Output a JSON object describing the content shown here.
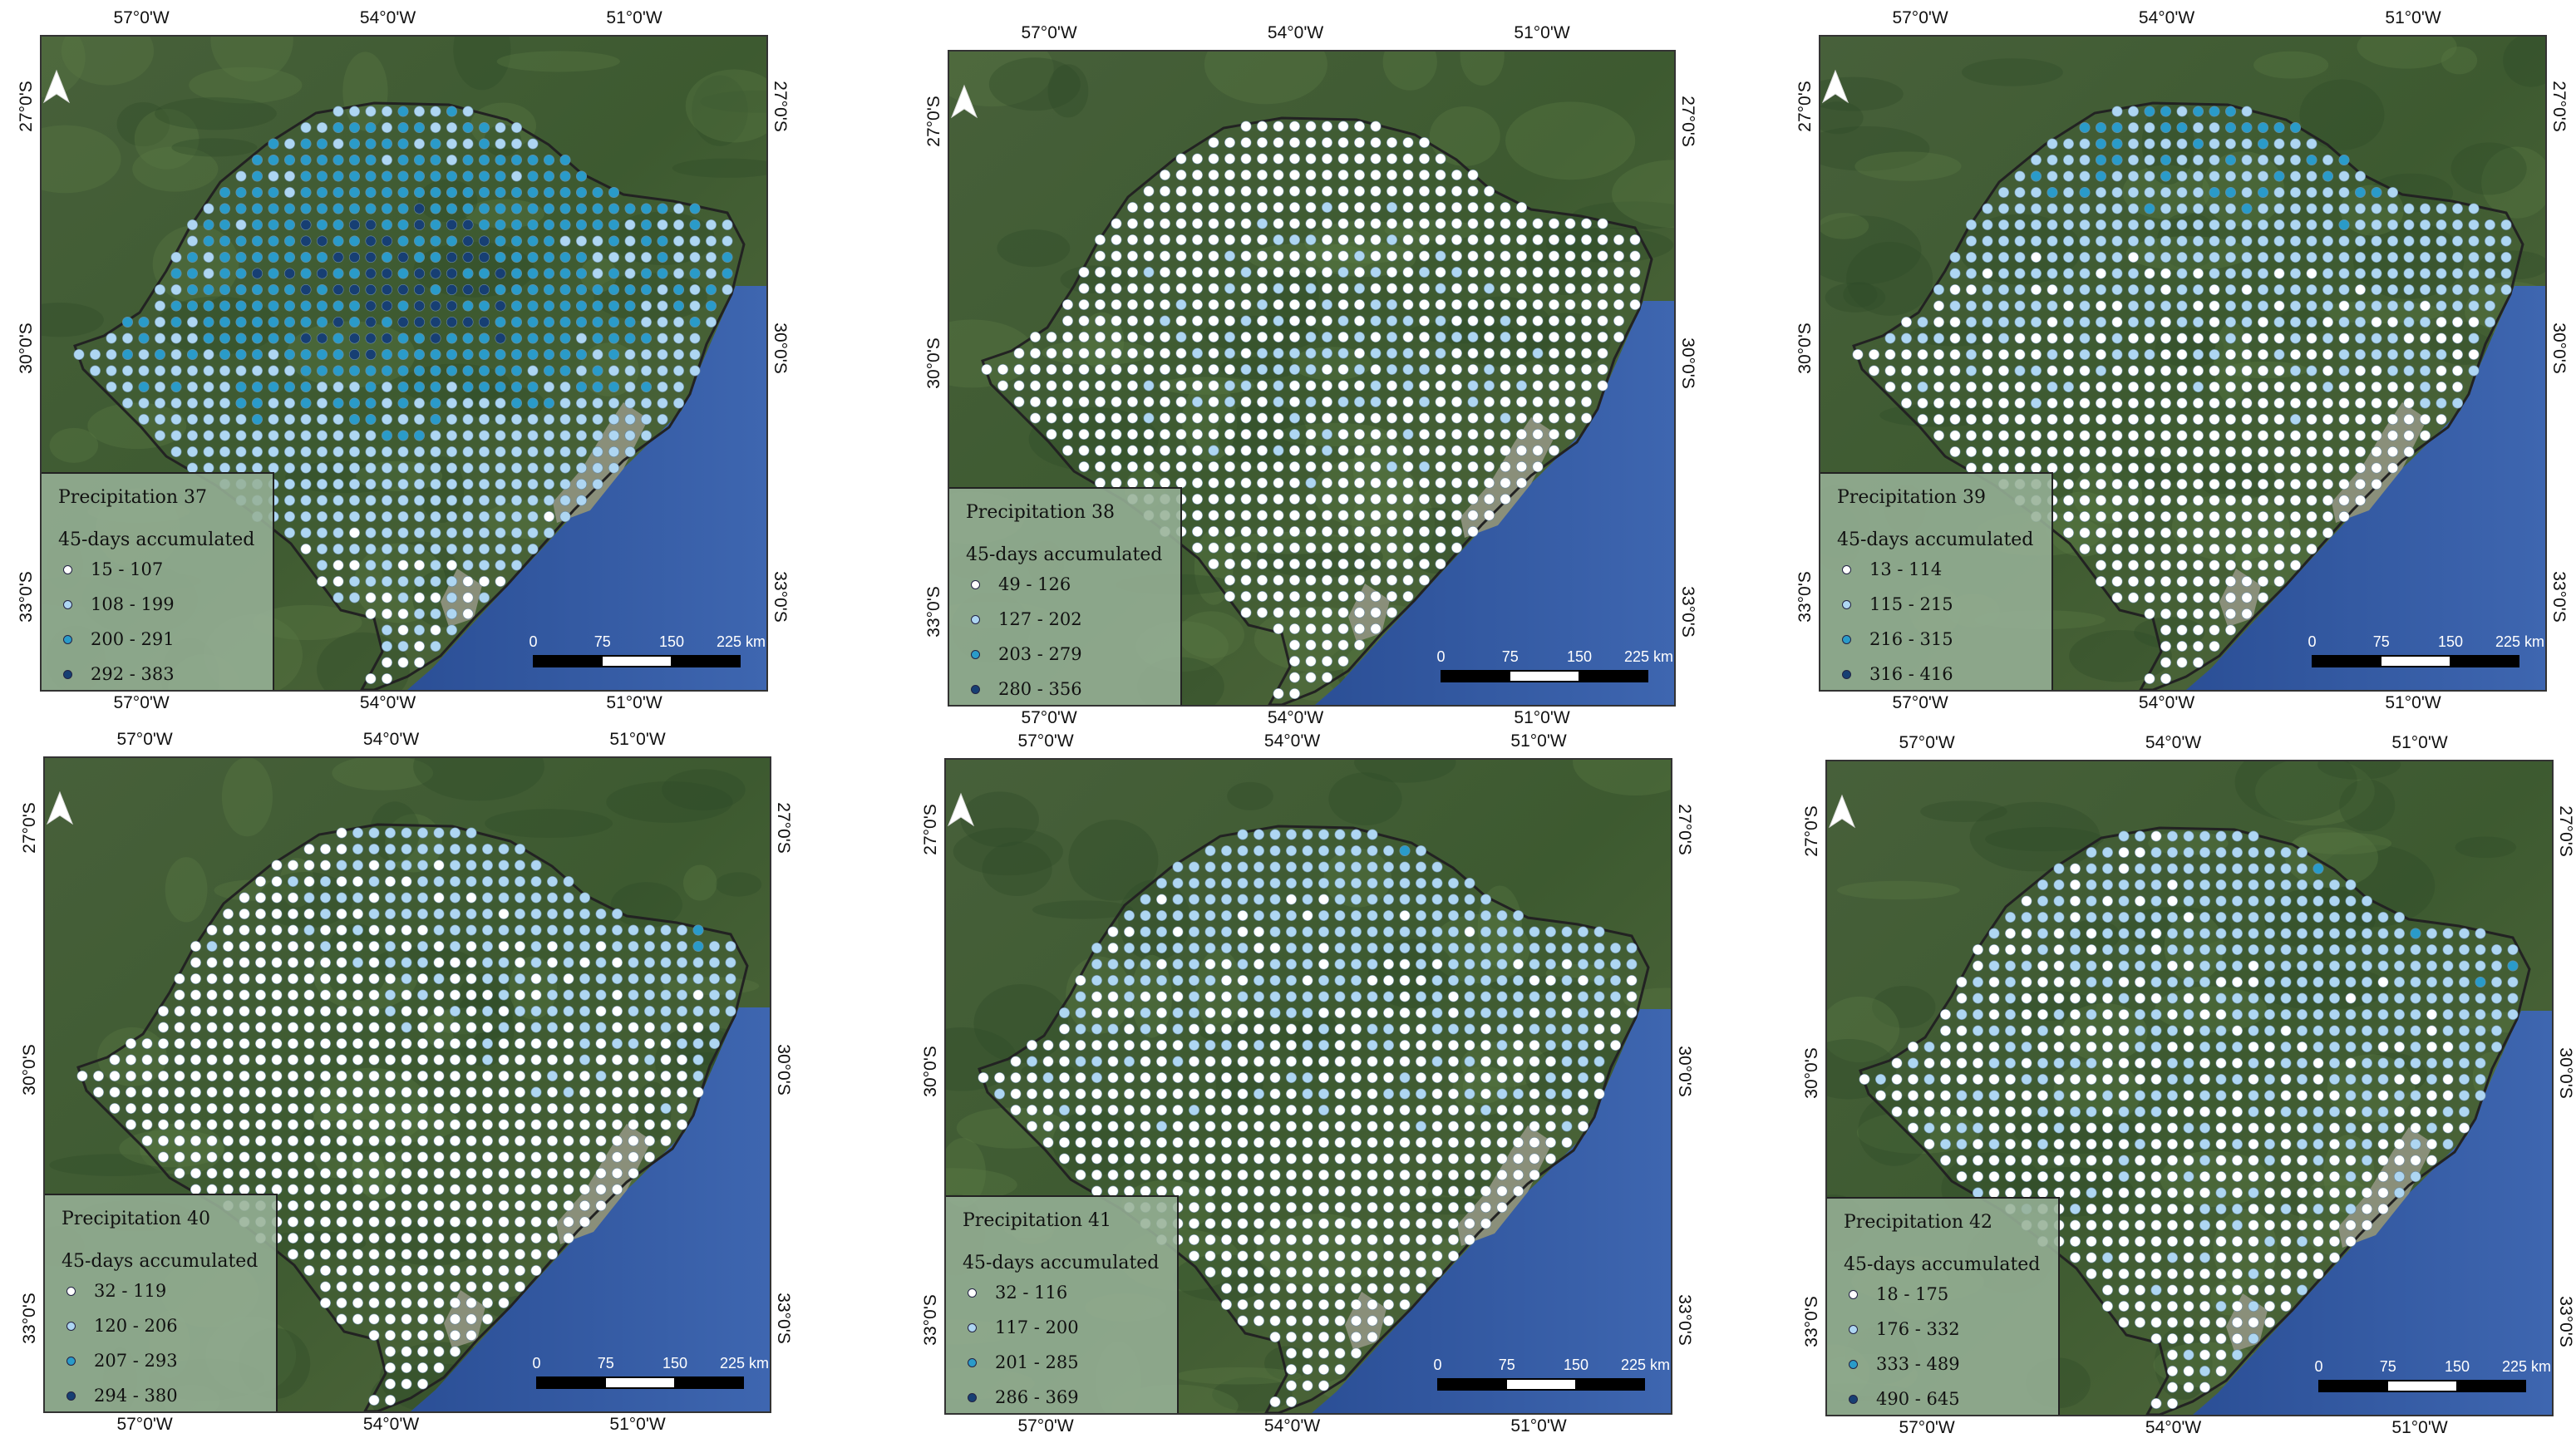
{
  "colors": [
    "#ffffff",
    "#aed6f2",
    "#2a9bc9",
    "#173f73"
  ],
  "longitude_labels": [
    "57°0'W",
    "54°0'W",
    "51°0'W"
  ],
  "latitude_labels": [
    "27°0'S",
    "30°0'S",
    "33°0'S"
  ],
  "scale": {
    "labels": [
      "0",
      "75",
      "150",
      "225 km"
    ]
  },
  "north_icon": "north-arrow-icon",
  "maps": [
    {
      "title": "Precipitation 37",
      "subtitle": "45-days accumulated",
      "classes": [
        "15 - 107",
        "108 - 199",
        "200 - 291",
        "292 - 383"
      ],
      "dominant": 2
    },
    {
      "title": "Precipitation 38",
      "subtitle": "45-days accumulated",
      "classes": [
        "49 - 126",
        "127 - 202",
        "203 - 279",
        "280 - 356"
      ],
      "dominant": 0
    },
    {
      "title": "Precipitation 39",
      "subtitle": "45-days accumulated",
      "classes": [
        "13 - 114",
        "115 - 215",
        "216 - 315",
        "316 - 416"
      ],
      "dominant": 1
    },
    {
      "title": "Precipitation 40",
      "subtitle": "45-days accumulated",
      "classes": [
        "32 - 119",
        "120 - 206",
        "207 - 293",
        "294 - 380"
      ],
      "dominant": 0
    },
    {
      "title": "Precipitation 41",
      "subtitle": "45-days accumulated",
      "classes": [
        "32 - 116",
        "117 - 200",
        "201 - 285",
        "286 - 369"
      ],
      "dominant": 0
    },
    {
      "title": "Precipitation 42",
      "subtitle": "45-days accumulated",
      "classes": [
        "18 - 175",
        "176 - 332",
        "333 - 489",
        "490 - 645"
      ],
      "dominant": 1
    }
  ]
}
